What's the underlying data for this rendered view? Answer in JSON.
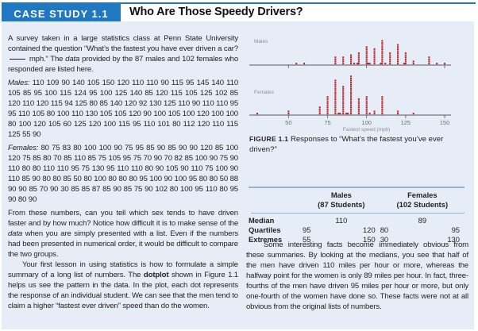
{
  "header": {
    "tab_label": "CASE STUDY 1.1",
    "title": "Who Are Those Speedy Drivers?"
  },
  "colors": {
    "accent": "#1f78c1",
    "panel_bg": "#e6edf7",
    "dot": "#c0272d",
    "rule": "#8fb3d9"
  },
  "left_column": {
    "intro_1": "A survey taken in a large statistics class at Penn State University contained the question “What’s the fastest you have ever driven a car?",
    "intro_2": "mph.” The",
    "intro_data_word": "data",
    "intro_3": "provided by the 87 males and 102 females who responded are listed here.",
    "males_label": "Males:",
    "males_text": "110 109 90 140 105 150 120 110 110 90 115 95 145 140 110 105 85 95 100 115 124 95 100 125 140 85 120 115 105 125 102 85 120 110 120 115 94 125 80 85 140 120 92 130 125 110 90 110 110 95 95 110 105 80 100 110 130 105 105 120 90 100 105 100 120 100 100 80 100 120 105 60 125 120 100 115 95 110 101 80 112 120 110 115 125 55 90",
    "females_label": "Females:",
    "females_text": "80 75 83 80 100 100 90 75 95 85 90 85 90 90 120 85 100 120 75 85 80 70 85 110 85 75 105 95 75 70 90 70 82 85 100 90 75 90 110 80 80 110 110 95 75 130 95 110 110 80 90 105 90 110 75 100 90 110 85 90 80 80 85 50 80 100 80 80 80 95 100 90 100 95 80 80 50 88 90 90 85 70 90 30 85 85 87 85 90 85 75 90 102 80 100 95 110 80 95 90 80 90",
    "para2_1": "From these numbers, can you tell which sex tends to have driven faster and by how much? Notice how difficult it is to make sense of the",
    "para2_data_word": "data",
    "para2_2": "when you are simply presented with a list. Even if the numbers had been presented in numerical order, it would be difficult to compare the two groups.",
    "para3_1": "Your first lesson in using statistics is how to formulate a simple summary of a long list of numbers. The",
    "para3_bold": "dotplot",
    "para3_2": "shown in Figure 1.1 helps us see the pattern in the data. In the plot, each dot represents the response of an individual student. We can see that the men tend to claim a higher “fastest ever driven” speed than do the women."
  },
  "figure": {
    "label": "FIGURE 1.1",
    "caption": "Responses to “What’s the fastest you’ve ever driven?”"
  },
  "chart_data": {
    "type": "scatter",
    "subtype": "dotplot",
    "title": "",
    "xlabel": "Fastest speed (mph)",
    "ylabel": "",
    "xlim": [
      30,
      150
    ],
    "xticks": [
      50,
      75,
      100,
      125,
      150
    ],
    "series": [
      {
        "name": "Males",
        "values": [
          110,
          109,
          90,
          140,
          105,
          150,
          120,
          110,
          110,
          90,
          115,
          95,
          145,
          140,
          110,
          105,
          85,
          95,
          100,
          115,
          124,
          95,
          100,
          125,
          140,
          85,
          120,
          115,
          105,
          125,
          102,
          85,
          120,
          110,
          120,
          115,
          94,
          125,
          80,
          85,
          140,
          120,
          92,
          130,
          125,
          110,
          90,
          110,
          110,
          95,
          95,
          110,
          105,
          80,
          100,
          110,
          130,
          105,
          105,
          120,
          90,
          100,
          105,
          100,
          120,
          100,
          100,
          80,
          100,
          120,
          105,
          60,
          125,
          120,
          100,
          115,
          95,
          110,
          101,
          80,
          112,
          120,
          110,
          115,
          125,
          55,
          90
        ]
      },
      {
        "name": "Females",
        "values": [
          80,
          75,
          83,
          80,
          100,
          100,
          90,
          75,
          95,
          85,
          90,
          85,
          90,
          90,
          120,
          85,
          100,
          120,
          75,
          85,
          80,
          70,
          85,
          110,
          85,
          75,
          105,
          95,
          75,
          70,
          90,
          70,
          82,
          85,
          100,
          90,
          75,
          90,
          110,
          80,
          80,
          110,
          110,
          95,
          75,
          130,
          95,
          110,
          110,
          80,
          90,
          105,
          90,
          110,
          75,
          100,
          90,
          110,
          85,
          90,
          80,
          80,
          85,
          50,
          80,
          100,
          80,
          80,
          80,
          95,
          100,
          90,
          100,
          95,
          80,
          80,
          50,
          88,
          90,
          90,
          85,
          70,
          90,
          30,
          85,
          85,
          87,
          85,
          90,
          85,
          75,
          90,
          102,
          80,
          100,
          95,
          110,
          80,
          95,
          90,
          80,
          90
        ]
      }
    ],
    "grid": false
  },
  "summary_table": {
    "columns": [
      {
        "line1": "Males",
        "line2": "(87 Students)"
      },
      {
        "line1": "Females",
        "line2": "(102 Students)"
      }
    ],
    "rows": [
      {
        "label": "Median",
        "males": [
          "110"
        ],
        "females": [
          "89"
        ]
      },
      {
        "label": "Quartiles",
        "males": [
          "95",
          "120"
        ],
        "females": [
          "80",
          "95"
        ]
      },
      {
        "label": "Extremes",
        "males": [
          "55",
          "150"
        ],
        "females": [
          "30",
          "130"
        ]
      }
    ]
  },
  "right_column": {
    "paragraph": "Some interesting facts become immediately obvious from these summaries. By looking at the medians, you see that half of the men have driven 110 miles per hour or more, whereas the halfway point for the women is only 89 miles per hour. In fact, three-fourths of the men have driven 95 miles per hour or more, but only one-fourth of the women have done so. These facts were not at all obvious from the original lists of numbers."
  }
}
